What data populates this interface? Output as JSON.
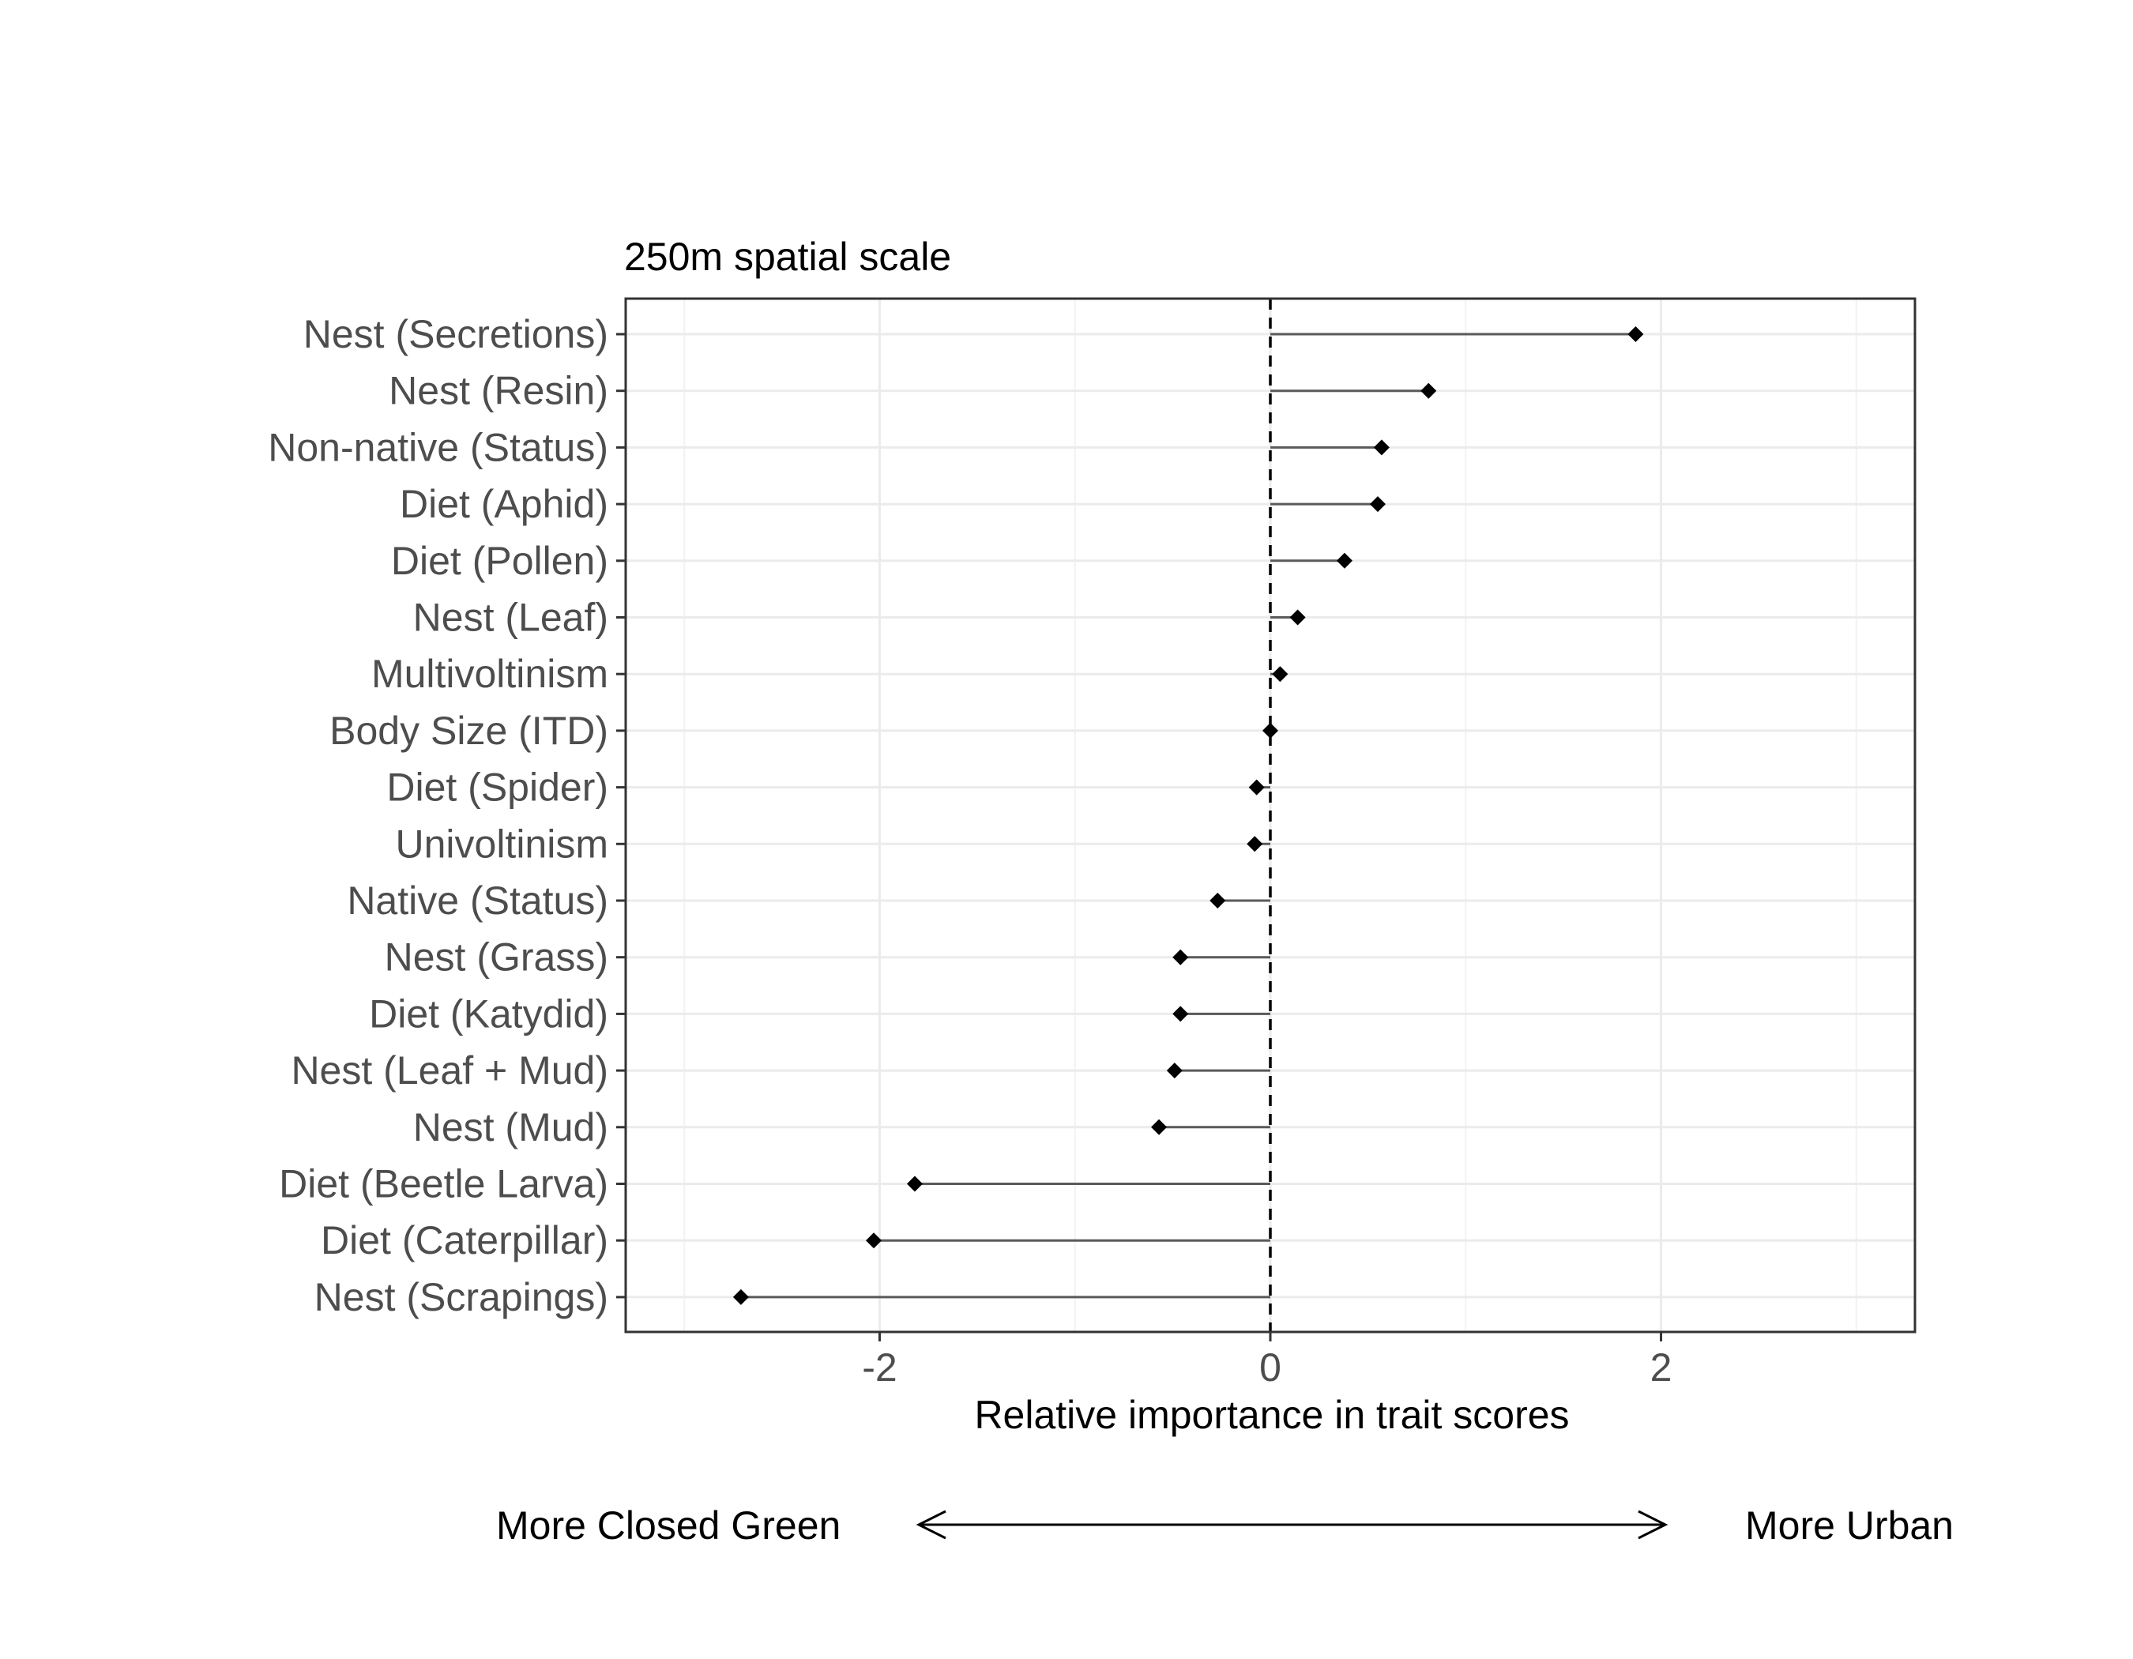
{
  "chart_data": {
    "type": "dot",
    "title": "250m spatial scale",
    "xlabel": "Relative importance in trait scores",
    "ylabel": "",
    "xlim": [
      -3.3,
      3.3
    ],
    "x_ticks": [
      -2,
      0,
      2
    ],
    "x_tick_labels": [
      "-2",
      "0",
      "2"
    ],
    "reference_line": 0,
    "grid": true,
    "categories": [
      "Nest (Secretions)",
      "Nest (Resin)",
      "Non-native (Status)",
      "Diet (Aphid)",
      "Diet (Pollen)",
      "Nest (Leaf)",
      "Multivoltinism",
      "Body Size (ITD)",
      "Diet (Spider)",
      "Univoltinism",
      "Native (Status)",
      "Nest (Grass)",
      "Diet (Katydid)",
      "Nest (Leaf + Mud)",
      "Nest (Mud)",
      "Diet (Beetle Larva)",
      "Diet (Caterpillar)",
      "Nest (Scrapings)"
    ],
    "values": [
      1.87,
      0.81,
      0.57,
      0.55,
      0.38,
      0.14,
      0.05,
      0.0,
      -0.07,
      -0.08,
      -0.27,
      -0.46,
      -0.46,
      -0.49,
      -0.57,
      -1.82,
      -2.03,
      -2.71
    ],
    "direction_left": "More Closed Green",
    "direction_right": "More Urban"
  }
}
